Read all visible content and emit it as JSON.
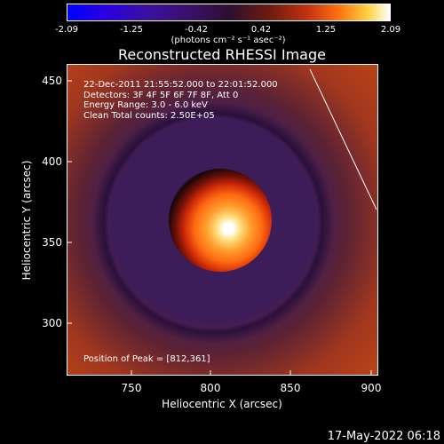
{
  "colorbar": {
    "ticks": [
      "-2.09",
      "-1.25",
      "-0.42",
      "0.42",
      "1.25",
      "2.09"
    ],
    "unit_label": "(photons cm⁻² s⁻¹ asec⁻²)"
  },
  "plot": {
    "title": "Reconstructed RHESSI Image",
    "info_lines": [
      "22-Dec-2011 21:55:52.000 to 22:01:52.000",
      "Detectors: 3F 4F 5F 6F 7F 8F, Att 0",
      "Energy Range: 3.0 - 6.0 keV",
      "Clean    Total counts: 2.50E+05"
    ],
    "peak_label": "Position of Peak = [812,361]",
    "xlabel": "Heliocentric X (arcsec)",
    "ylabel": "Heliocentric Y (arcsec)",
    "xticks": [
      "750",
      "800",
      "850",
      "900"
    ],
    "yticks": [
      "450",
      "400",
      "350",
      "300"
    ]
  },
  "footer": {
    "timestamp": "17-May-2022 06:18"
  }
}
